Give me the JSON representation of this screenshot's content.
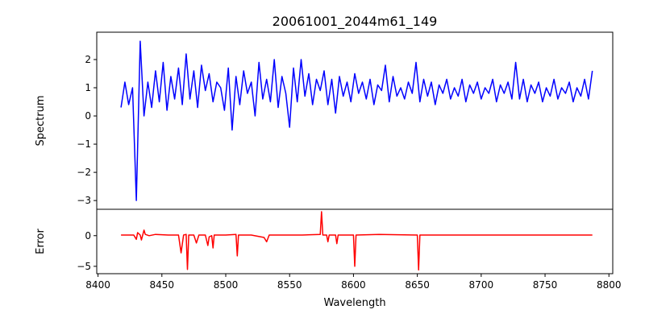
{
  "chart_data": [
    {
      "type": "line",
      "title": "20061001_2044m61_149",
      "xlabel": "",
      "ylabel": "Spectrum",
      "color": "#0000ff",
      "xlim": [
        8399,
        8803
      ],
      "ylim": [
        -3.31,
        2.97
      ],
      "yticks": [
        -3,
        -2,
        -1,
        0,
        1,
        2
      ],
      "ytick_labels": [
        "−3",
        "−2",
        "−1",
        "0",
        "1",
        "2"
      ],
      "x_start": 8418,
      "x_step": 3,
      "values": [
        0.3,
        1.2,
        0.4,
        1.0,
        -3.0,
        2.65,
        0.0,
        1.2,
        0.3,
        1.6,
        0.5,
        1.9,
        0.2,
        1.4,
        0.6,
        1.7,
        0.4,
        2.2,
        0.6,
        1.6,
        0.3,
        1.8,
        0.9,
        1.5,
        0.5,
        1.2,
        1.0,
        0.2,
        1.7,
        -0.5,
        1.4,
        0.4,
        1.6,
        0.8,
        1.2,
        0.0,
        1.9,
        0.6,
        1.3,
        0.5,
        2.0,
        0.3,
        1.4,
        0.8,
        -0.4,
        1.7,
        0.5,
        2.0,
        0.7,
        1.5,
        0.4,
        1.3,
        0.9,
        1.6,
        0.4,
        1.3,
        0.1,
        1.4,
        0.7,
        1.2,
        0.5,
        1.5,
        0.8,
        1.2,
        0.6,
        1.3,
        0.4,
        1.1,
        0.9,
        1.8,
        0.5,
        1.4,
        0.7,
        1.0,
        0.6,
        1.2,
        0.8,
        1.9,
        0.5,
        1.3,
        0.7,
        1.2,
        0.4,
        1.1,
        0.8,
        1.3,
        0.6,
        1.0,
        0.7,
        1.3,
        0.5,
        1.1,
        0.8,
        1.2,
        0.6,
        1.0,
        0.8,
        1.3,
        0.5,
        1.1,
        0.8,
        1.2,
        0.6,
        1.9,
        0.6,
        1.3,
        0.5,
        1.1,
        0.8,
        1.2,
        0.5,
        1.0,
        0.7,
        1.3,
        0.6,
        1.0,
        0.8,
        1.2,
        0.5,
        1.0,
        0.7,
        1.3,
        0.6,
        1.6
      ]
    },
    {
      "type": "line",
      "title": "",
      "xlabel": "Wavelength",
      "ylabel": "Error",
      "color": "#ff0000",
      "xlim": [
        8399,
        8803
      ],
      "ylim": [
        -6.2,
        4.3
      ],
      "yticks": [
        -5,
        0
      ],
      "ytick_labels": [
        "−5",
        "0"
      ],
      "xticks": [
        8400,
        8450,
        8500,
        8550,
        8600,
        8650,
        8700,
        8750,
        8800
      ],
      "xtick_labels": [
        "8400",
        "8450",
        "8500",
        "8550",
        "8600",
        "8650",
        "8700",
        "8750",
        "8800"
      ],
      "x": [
        8418,
        8428,
        8430,
        8431,
        8433,
        8434,
        8436,
        8437,
        8440,
        8445,
        8455,
        8463,
        8465,
        8467,
        8469,
        8470,
        8471,
        8475,
        8477,
        8479,
        8484,
        8486,
        8487,
        8489,
        8490,
        8491,
        8500,
        8508,
        8509,
        8510,
        8520,
        8530,
        8532,
        8534,
        8545,
        8560,
        8574,
        8575,
        8576,
        8579,
        8580,
        8581,
        8586,
        8587,
        8588,
        8600,
        8601,
        8602,
        8620,
        8650,
        8651,
        8652,
        8653,
        8660,
        8700,
        8750,
        8787
      ],
      "values": [
        0.1,
        0.1,
        -0.6,
        0.5,
        0.1,
        -0.7,
        0.9,
        0.2,
        0.0,
        0.2,
        0.1,
        0.1,
        -2.8,
        0.1,
        0.2,
        -5.5,
        0.1,
        0.1,
        -1.2,
        0.1,
        0.1,
        -1.6,
        -0.2,
        0.0,
        -2.0,
        0.1,
        0.1,
        0.2,
        -3.3,
        0.1,
        0.1,
        -0.3,
        -1.0,
        0.1,
        0.1,
        0.1,
        0.2,
        3.9,
        0.1,
        0.1,
        -1.0,
        0.1,
        0.1,
        -1.3,
        0.1,
        0.1,
        -5.0,
        0.1,
        0.2,
        0.1,
        -5.6,
        0.1,
        0.1,
        0.1,
        0.1,
        0.1,
        0.1
      ]
    }
  ]
}
